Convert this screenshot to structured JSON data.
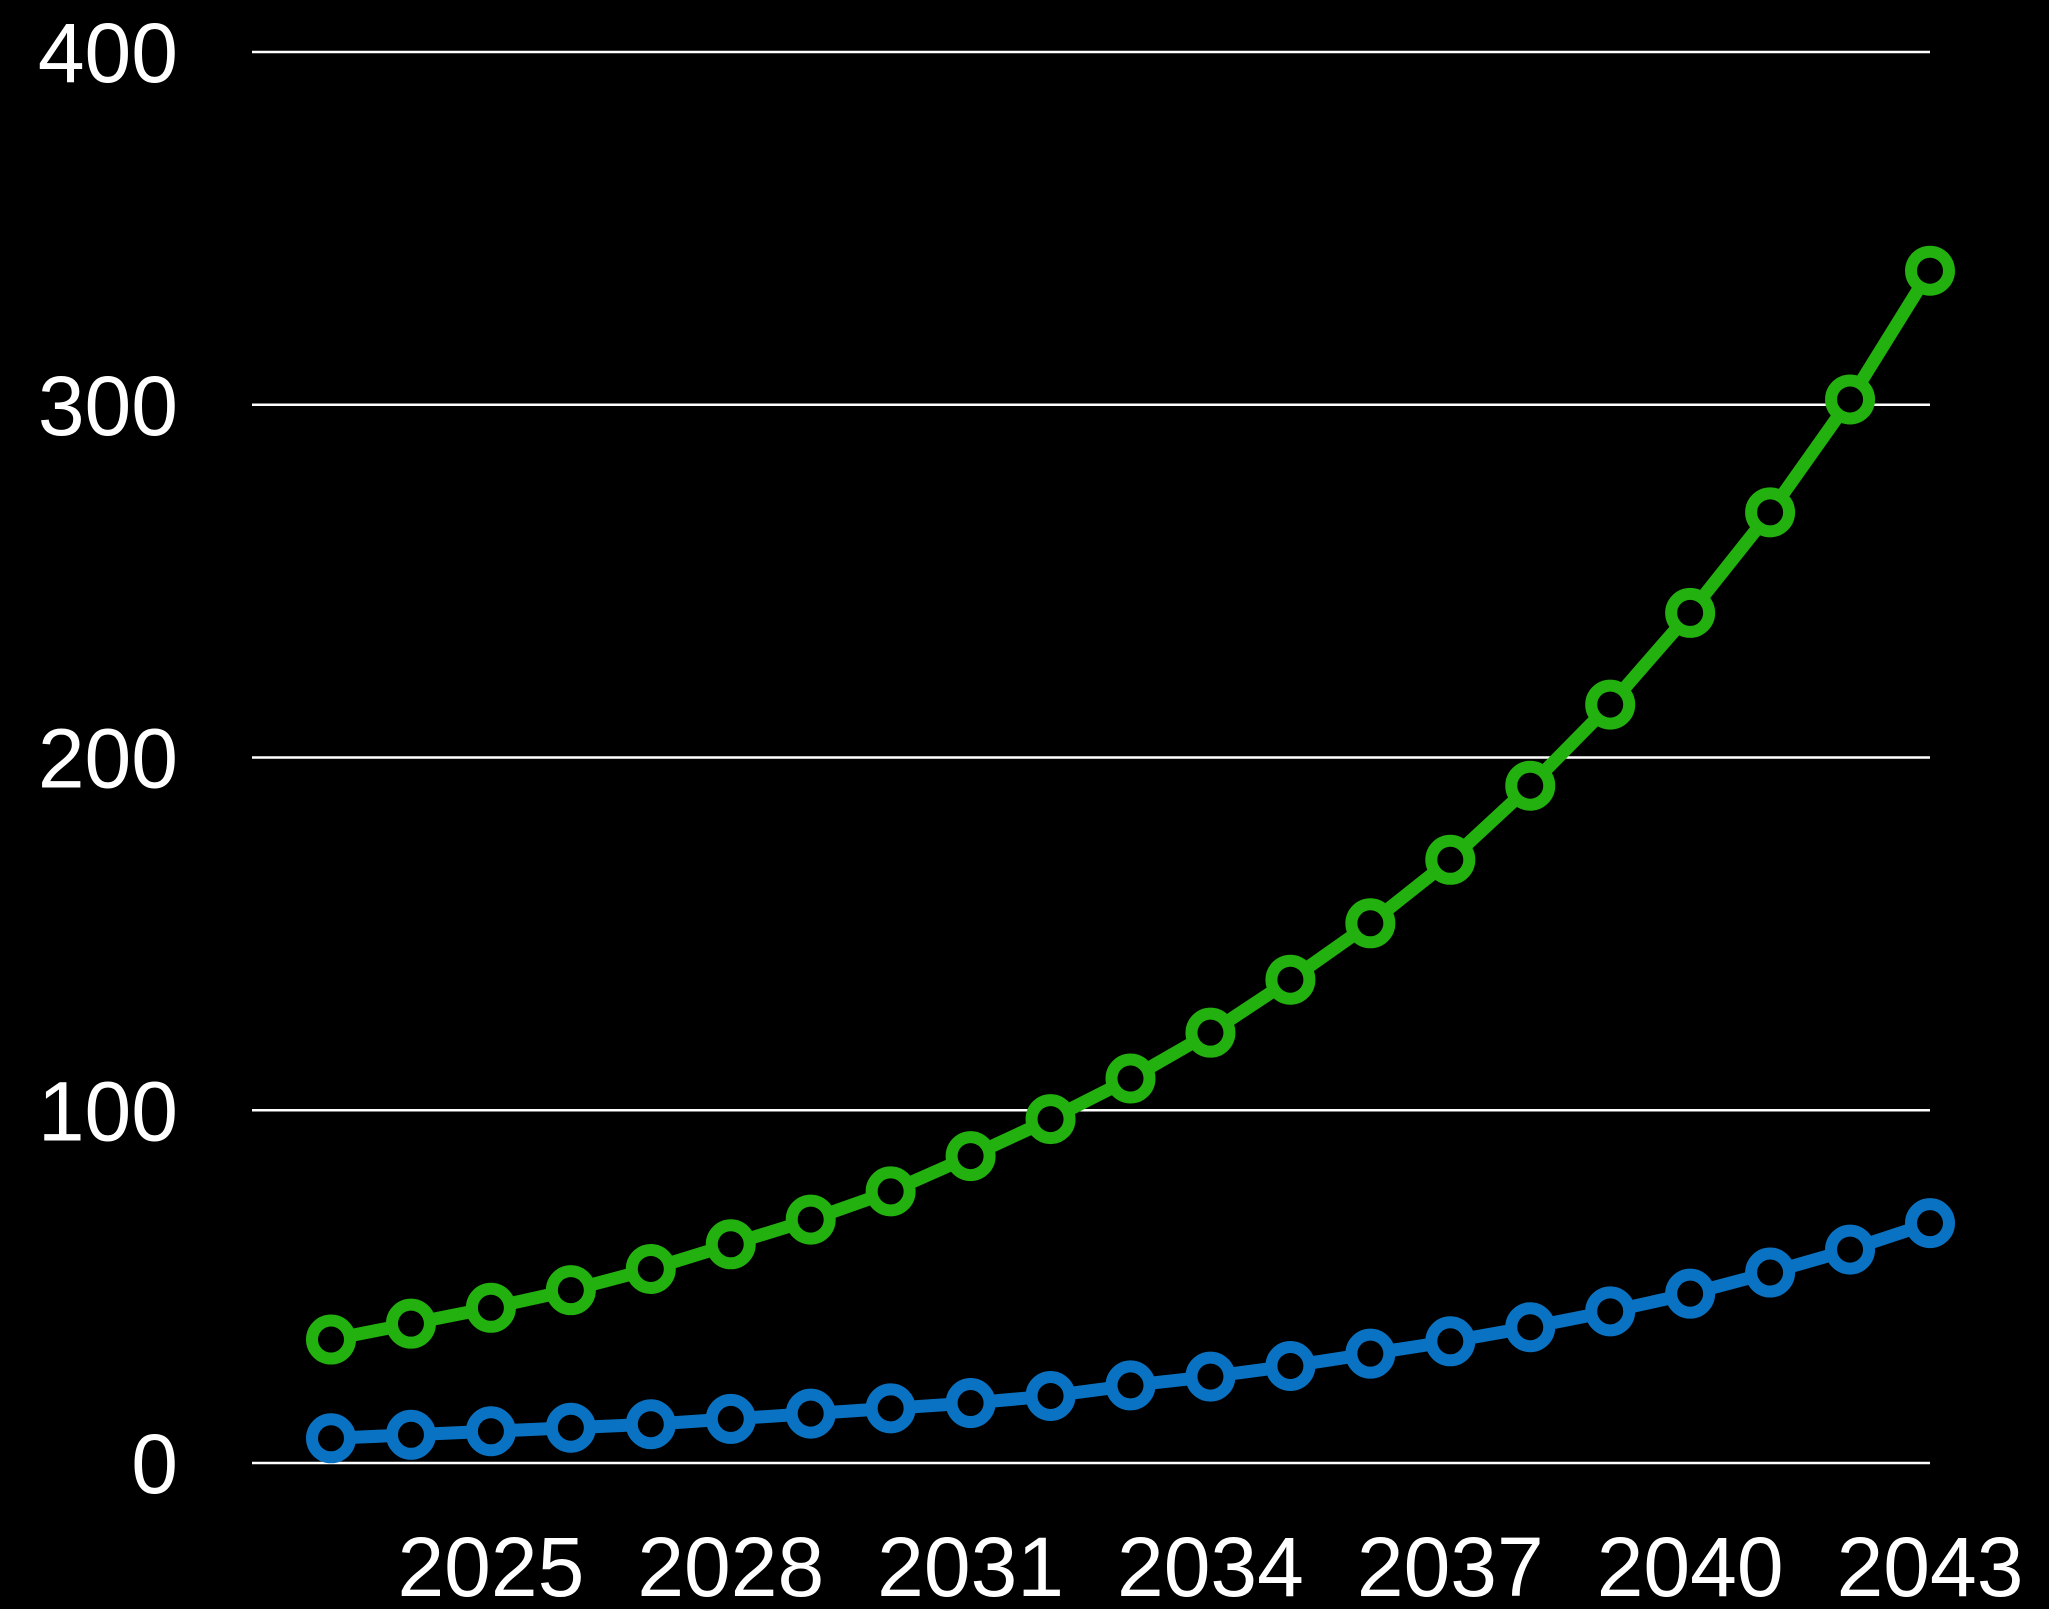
{
  "chart_data": {
    "type": "line",
    "x": [
      2023,
      2024,
      2025,
      2026,
      2027,
      2028,
      2029,
      2030,
      2031,
      2032,
      2033,
      2034,
      2035,
      2036,
      2037,
      2038,
      2039,
      2040,
      2041,
      2042,
      2043
    ],
    "xticks": [
      2025,
      2028,
      2031,
      2034,
      2037,
      2040,
      2043
    ],
    "xlim": [
      2022,
      2043
    ],
    "yticks": [
      0,
      100,
      200,
      300,
      400
    ],
    "ylim": [
      0,
      400
    ],
    "grid": "horizontal",
    "background": "#000000",
    "text_color": "#ffffff",
    "series": [
      {
        "color": "#22b10e",
        "values": [
          35,
          39.5,
          44,
          49,
          55,
          62,
          69,
          77,
          87,
          97.5,
          109,
          122,
          137,
          153,
          171,
          192,
          215,
          241,
          269.5,
          301.5,
          338
        ]
      },
      {
        "color": "#0a72c2",
        "values": [
          7,
          8,
          9,
          10,
          11,
          12.5,
          14,
          15.5,
          17,
          19,
          22,
          24.5,
          27.5,
          31,
          34.5,
          38.5,
          43,
          48,
          54,
          60.5,
          68
        ]
      }
    ]
  }
}
